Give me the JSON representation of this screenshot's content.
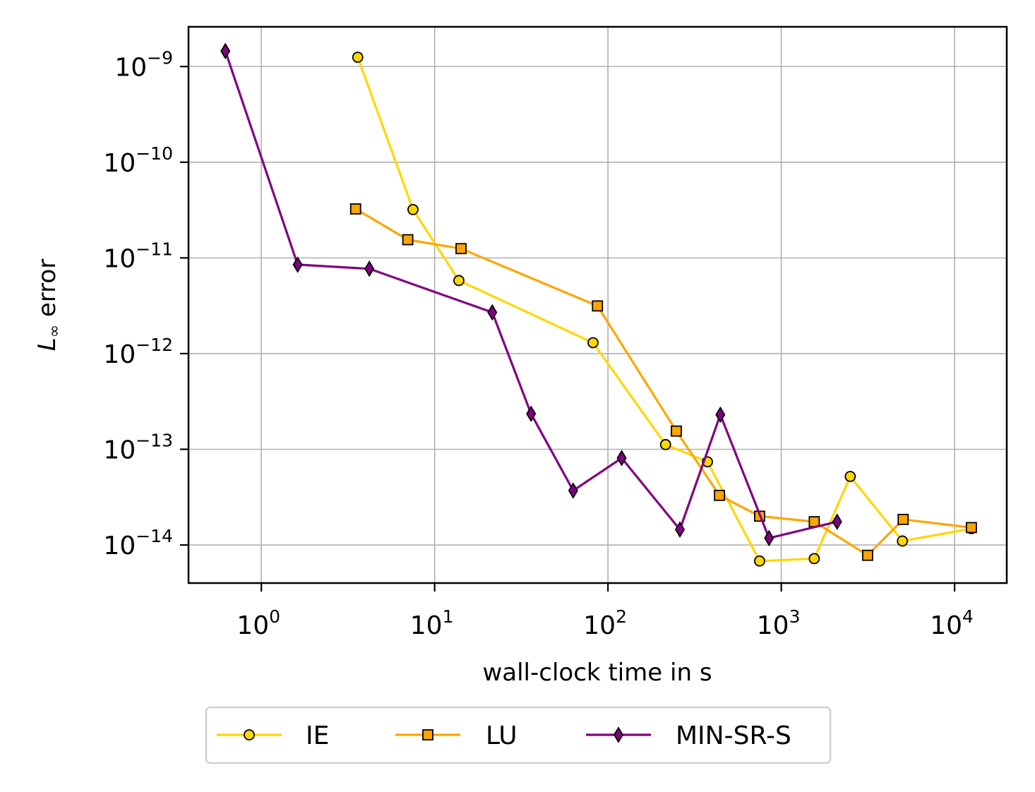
{
  "chart_data": {
    "type": "line",
    "title": "",
    "xlabel": "wall-clock time in s",
    "ylabel_main": "L",
    "ylabel_sub": "∞",
    "ylabel_rest": " error",
    "xscale": "log",
    "yscale": "log",
    "xlim": [
      0.38,
      20000
    ],
    "ylim": [
      4e-15,
      2.6e-09
    ],
    "grid": true,
    "legend_placement": "bottom-center",
    "x_ticks": [
      {
        "value": 1,
        "base": "10",
        "exp": "0"
      },
      {
        "value": 10,
        "base": "10",
        "exp": "1"
      },
      {
        "value": 100,
        "base": "10",
        "exp": "2"
      },
      {
        "value": 1000,
        "base": "10",
        "exp": "3"
      },
      {
        "value": 10000,
        "base": "10",
        "exp": "4"
      }
    ],
    "y_ticks": [
      {
        "value": 1e-09,
        "base": "10",
        "exp": "−9"
      },
      {
        "value": 1e-10,
        "base": "10",
        "exp": "−10"
      },
      {
        "value": 1e-11,
        "base": "10",
        "exp": "−11"
      },
      {
        "value": 1e-12,
        "base": "10",
        "exp": "−12"
      },
      {
        "value": 1e-13,
        "base": "10",
        "exp": "−13"
      },
      {
        "value": 1e-14,
        "base": "10",
        "exp": "−14"
      }
    ],
    "series": [
      {
        "name": "IE",
        "color": "#ffd700",
        "marker": "circle",
        "points": [
          [
            3.6,
            1.25e-09
          ],
          [
            7.5,
            3.2e-11
          ],
          [
            13.8,
            5.8e-12
          ],
          [
            82,
            1.3e-12
          ],
          [
            215,
            1.12e-13
          ],
          [
            375,
            7.4e-14
          ],
          [
            750,
            6.8e-15
          ],
          [
            1550,
            7.2e-15
          ],
          [
            2500,
            5.2e-14
          ],
          [
            5000,
            1.1e-14
          ],
          [
            12500,
            1.48e-14
          ]
        ]
      },
      {
        "name": "LU",
        "color": "#ffa500",
        "marker": "square",
        "points": [
          [
            3.5,
            3.25e-11
          ],
          [
            7.0,
            1.55e-11
          ],
          [
            14.2,
            1.25e-11
          ],
          [
            87,
            3.15e-12
          ],
          [
            248,
            1.55e-13
          ],
          [
            440,
            3.3e-14
          ],
          [
            750,
            2e-14
          ],
          [
            1550,
            1.75e-14
          ],
          [
            3150,
            7.8e-15
          ],
          [
            5050,
            1.85e-14
          ],
          [
            12500,
            1.52e-14
          ]
        ]
      },
      {
        "name": "MIN-SR-S",
        "color": "#800080",
        "marker": "diamond",
        "points": [
          [
            0.62,
            1.45e-09
          ],
          [
            1.62,
            8.5e-12
          ],
          [
            4.2,
            7.7e-12
          ],
          [
            21.5,
            2.7e-12
          ],
          [
            36,
            2.35e-13
          ],
          [
            63,
            3.7e-14
          ],
          [
            120,
            8.1e-14
          ],
          [
            260,
            1.45e-14
          ],
          [
            445,
            2.3e-13
          ],
          [
            850,
            1.18e-14
          ],
          [
            2100,
            1.75e-14
          ]
        ]
      }
    ]
  }
}
